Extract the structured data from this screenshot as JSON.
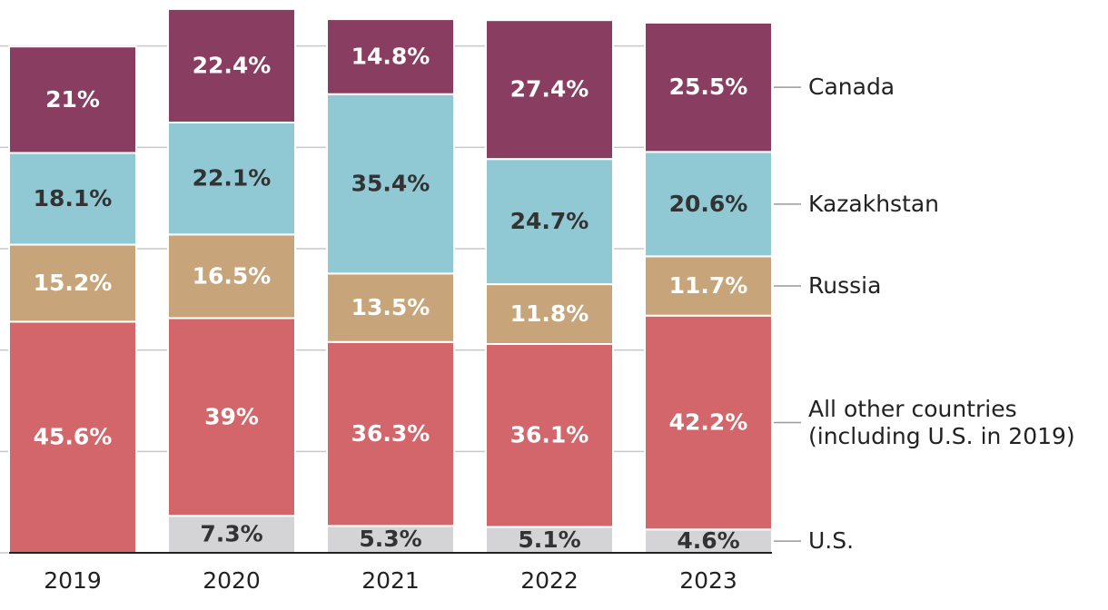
{
  "chart_data": {
    "type": "stacked-bar",
    "categories": [
      "2019",
      "2020",
      "2021",
      "2022",
      "2023"
    ],
    "series": [
      {
        "name": "U.S.",
        "color": "#d4d4d6",
        "values": [
          null,
          7.3,
          5.3,
          5.1,
          4.6
        ],
        "value_labels": [
          null,
          "7.3%",
          "5.3%",
          "5.1%",
          "4.6%"
        ]
      },
      {
        "name": "All other countries (including U.S. in 2019)",
        "color": "#d3666a",
        "values": [
          45.6,
          39,
          36.3,
          36.1,
          42.2
        ],
        "value_labels": [
          "45.6%",
          "39%",
          "36.3%",
          "36.1%",
          "42.2%"
        ]
      },
      {
        "name": "Russia",
        "color": "#c7a47a",
        "values": [
          15.2,
          16.5,
          13.5,
          11.8,
          11.7
        ],
        "value_labels": [
          "15.2%",
          "16.5%",
          "13.5%",
          "11.8%",
          "11.7%"
        ]
      },
      {
        "name": "Kazakhstan",
        "color": "#90c9d4",
        "values": [
          18.1,
          22.1,
          35.4,
          24.7,
          20.6
        ],
        "value_labels": [
          "18.1%",
          "22.1%",
          "35.4%",
          "24.7%",
          "20.6%"
        ]
      },
      {
        "name": "Canada",
        "color": "#893d60",
        "values": [
          21,
          22.4,
          14.8,
          27.4,
          25.5
        ],
        "value_labels": [
          "21%",
          "22.4%",
          "14.8%",
          "27.4%",
          "25.5%"
        ]
      }
    ],
    "ylim": [
      0,
      108
    ],
    "yticks": [
      0,
      20,
      40,
      60,
      80,
      100
    ],
    "grid": true
  }
}
